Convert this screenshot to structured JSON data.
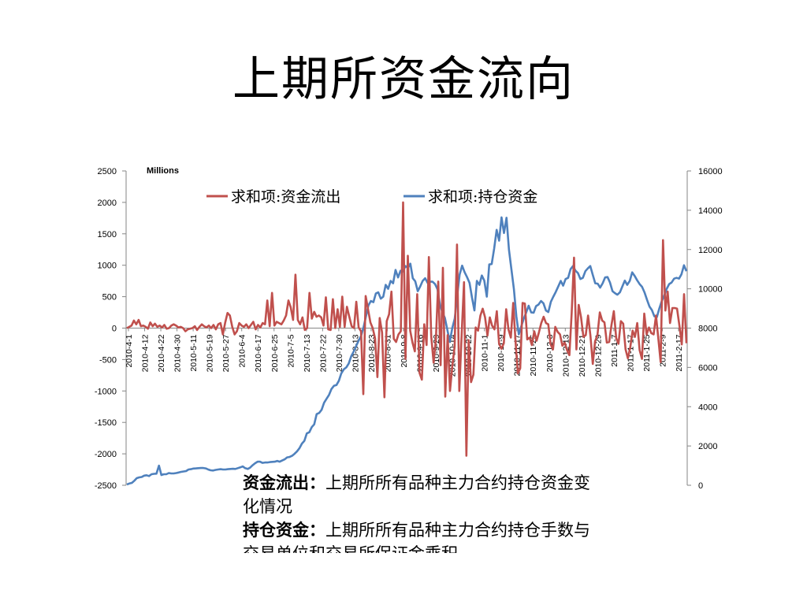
{
  "title": "上期所资金流向",
  "notes": [
    {
      "term": "资金流出：",
      "text": "上期所所有品种主力合约持仓资金变化情况"
    },
    {
      "term": "持仓资金：",
      "text": "上期所所有品种主力合约持仓手数与交易单位和交易所保证金乘积"
    }
  ],
  "chart_data": {
    "type": "line",
    "units_label": "Millions",
    "grid": false,
    "legend_position": "top",
    "x_tick_labels": [
      "2010-4-1",
      "2010-4-12",
      "2010-4-22",
      "2010-4-30",
      "2010-5-11",
      "2010-5-19",
      "2010-5-27",
      "2010-6-4",
      "2010-6-17",
      "2010-6-25",
      "2010-7-5",
      "2010-7-13",
      "2010-7-22",
      "2010-7-30",
      "2010-8-13",
      "2010-8-23",
      "2010-8-31",
      "2010-9-8",
      "2010-9-16",
      "2010-9-29",
      "2010-10-14",
      "2010-10-22",
      "2010-11-1",
      "2010-11-9",
      "2010-11-17",
      "2010-11-25",
      "2010-12-3",
      "2010-12-13",
      "2010-12-21",
      "2010-12-29",
      "2011-1-7",
      "2011-1-17",
      "2011-1-25",
      "2011-2-9",
      "2011-2-17"
    ],
    "y_left": {
      "min": -2500,
      "max": 2500,
      "ticks": [
        -2500,
        -2000,
        -1500,
        -1000,
        -500,
        0,
        500,
        1000,
        1500,
        2000,
        2500
      ]
    },
    "y_right": {
      "min": 0,
      "max": 16000,
      "ticks": [
        0,
        2000,
        4000,
        6000,
        8000,
        10000,
        12000,
        14000,
        16000
      ]
    },
    "series": [
      {
        "name": "求和项:资金流出",
        "axis": "left",
        "color": "#c0504d",
        "values": [
          0,
          20,
          40,
          120,
          60,
          130,
          30,
          40,
          20,
          -10,
          90,
          30,
          70,
          20,
          40,
          10,
          50,
          -10,
          0,
          40,
          60,
          40,
          10,
          20,
          0,
          -50,
          -20,
          -10,
          0,
          30,
          -30,
          20,
          60,
          30,
          10,
          40,
          0,
          50,
          -20,
          60,
          80,
          -100,
          90,
          240,
          200,
          20,
          -100,
          -50,
          80,
          40,
          20,
          60,
          0,
          50,
          100,
          -20,
          50,
          10,
          80,
          60,
          440,
          30,
          560,
          40,
          100,
          80,
          60,
          120,
          200,
          440,
          330,
          130,
          850,
          130,
          60,
          170,
          -30,
          0,
          560,
          150,
          260,
          180,
          200,
          170,
          40,
          490,
          -20,
          -30,
          460,
          0,
          300,
          20,
          500,
          20,
          340,
          180,
          30,
          0,
          420,
          10,
          -50,
          -1050,
          510,
          300,
          90,
          0,
          -160,
          -780,
          160,
          -70,
          -1100,
          110,
          220,
          580,
          -170,
          -220,
          -100,
          -50,
          2000,
          -490,
          1150,
          -40,
          -230,
          -370,
          540,
          -710,
          -820,
          60,
          -270,
          1130,
          -130,
          -550,
          -180,
          740,
          -590,
          960,
          -1090,
          -110,
          -1000,
          -610,
          -290,
          1330,
          -1000,
          -100,
          730,
          -2030,
          -190,
          -860,
          -740,
          10,
          -40,
          200,
          310,
          170,
          -120,
          170,
          40,
          -20,
          270,
          -250,
          -330,
          -240,
          300,
          -20,
          -150,
          400,
          -200,
          -720,
          -640,
          400,
          390,
          -180,
          -150,
          -270,
          -50,
          -200,
          -70,
          80,
          180,
          80,
          60,
          -260,
          -340,
          20,
          -60,
          -100,
          -280,
          -230,
          -350,
          -430,
          240,
          1120,
          -340,
          370,
          170,
          -140,
          -110,
          200,
          -120,
          -570,
          -210,
          -110,
          250,
          120,
          90,
          -230,
          -220,
          50,
          270,
          -160,
          -250,
          110,
          70,
          -340,
          -480,
          -310,
          -40,
          -140,
          80,
          -350,
          -490,
          230,
          -100,
          10,
          -80,
          -100,
          200,
          -170,
          -540,
          1400,
          280,
          580,
          80,
          320,
          320,
          310,
          40,
          -260,
          540,
          -240
        ]
      },
      {
        "name": "求和项:持仓资金",
        "axis": "right",
        "color": "#4f81bd",
        "values": [
          40,
          90,
          120,
          230,
          360,
          400,
          420,
          490,
          510,
          470,
          560,
          580,
          590,
          1000,
          520,
          560,
          560,
          620,
          600,
          600,
          620,
          650,
          680,
          700,
          720,
          800,
          820,
          850,
          860,
          870,
          880,
          880,
          860,
          800,
          760,
          750,
          780,
          800,
          820,
          800,
          800,
          820,
          830,
          840,
          830,
          870,
          910,
          960,
          870,
          830,
          900,
          1020,
          1120,
          1200,
          1200,
          1140,
          1160,
          1160,
          1180,
          1190,
          1200,
          1240,
          1200,
          1260,
          1320,
          1420,
          1440,
          1500,
          1600,
          1720,
          1880,
          2120,
          2260,
          2640,
          2700,
          2960,
          3100,
          3620,
          3680,
          3840,
          4200,
          4400,
          4600,
          4900,
          5060,
          5100,
          5320,
          5700,
          5900,
          6000,
          6200,
          6560,
          6800,
          7080,
          7360,
          7600,
          8040,
          8600,
          9160,
          9380,
          9320,
          9760,
          9820,
          9500,
          9600,
          10200,
          10000,
          10400,
          10280,
          10960,
          10580,
          10920,
          10880,
          11160,
          11060,
          11280,
          10540,
          10380,
          9880,
          10120,
          10400,
          10540,
          10300,
          10360,
          10360,
          10240,
          9980,
          9200,
          8800,
          8520,
          7920,
          7300,
          8000,
          8480,
          9620,
          10720,
          11180,
          10850,
          10600,
          10300,
          9560,
          8900,
          10400,
          10200,
          10680,
          10420,
          9600,
          11240,
          11260,
          12040,
          13000,
          12450,
          13640,
          12840,
          13620,
          12000,
          11000,
          9980,
          8600,
          7680,
          8080,
          8480,
          8800,
          9140,
          8800,
          8780,
          9120,
          9200,
          9380,
          9260,
          8900,
          8820,
          9340,
          9600,
          9840,
          10120,
          10400,
          10160,
          10500,
          10560,
          11000,
          11160,
          10920,
          10800,
          10500,
          10560,
          10900,
          11040,
          11160,
          10720,
          10280,
          10260,
          10060,
          10280,
          10580,
          10600,
          10320,
          9880,
          9780,
          9700,
          9820,
          10120,
          10420,
          10200,
          10400,
          10840,
          10660,
          10440,
          10240,
          10100,
          9820,
          9440,
          9100,
          8920,
          8600,
          8560,
          9000,
          9380,
          9660,
          10000,
          10240,
          10320,
          10520,
          10560,
          10520,
          10740,
          11200,
          10900
        ]
      }
    ]
  }
}
